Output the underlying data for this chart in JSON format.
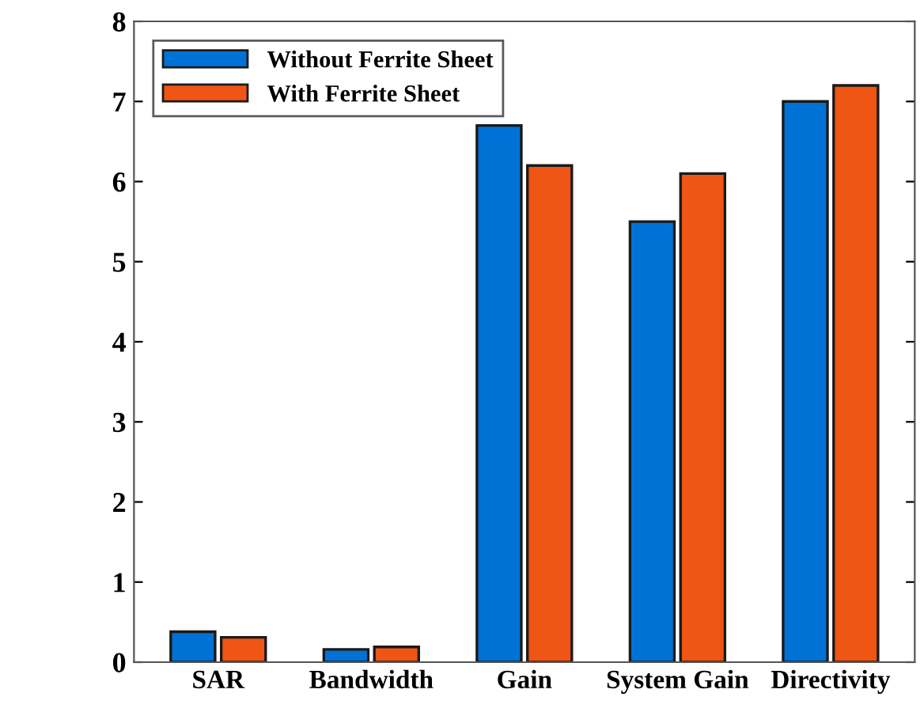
{
  "chart_data": {
    "type": "bar",
    "categories": [
      "SAR",
      "Bandwidth",
      "Gain",
      "System Gain",
      "Directivity"
    ],
    "series": [
      {
        "name": "Without Ferrite Sheet",
        "color": "#0072d6",
        "values": [
          0.38,
          0.16,
          6.7,
          5.5,
          7.0
        ]
      },
      {
        "name": "With Ferrite Sheet",
        "color": "#ef5514",
        "values": [
          0.31,
          0.19,
          6.2,
          6.1,
          7.2
        ]
      }
    ],
    "ylim": [
      0,
      8
    ],
    "yticks": [
      0,
      1,
      2,
      3,
      4,
      5,
      6,
      7,
      8
    ],
    "grid": false,
    "legend": "top left"
  }
}
